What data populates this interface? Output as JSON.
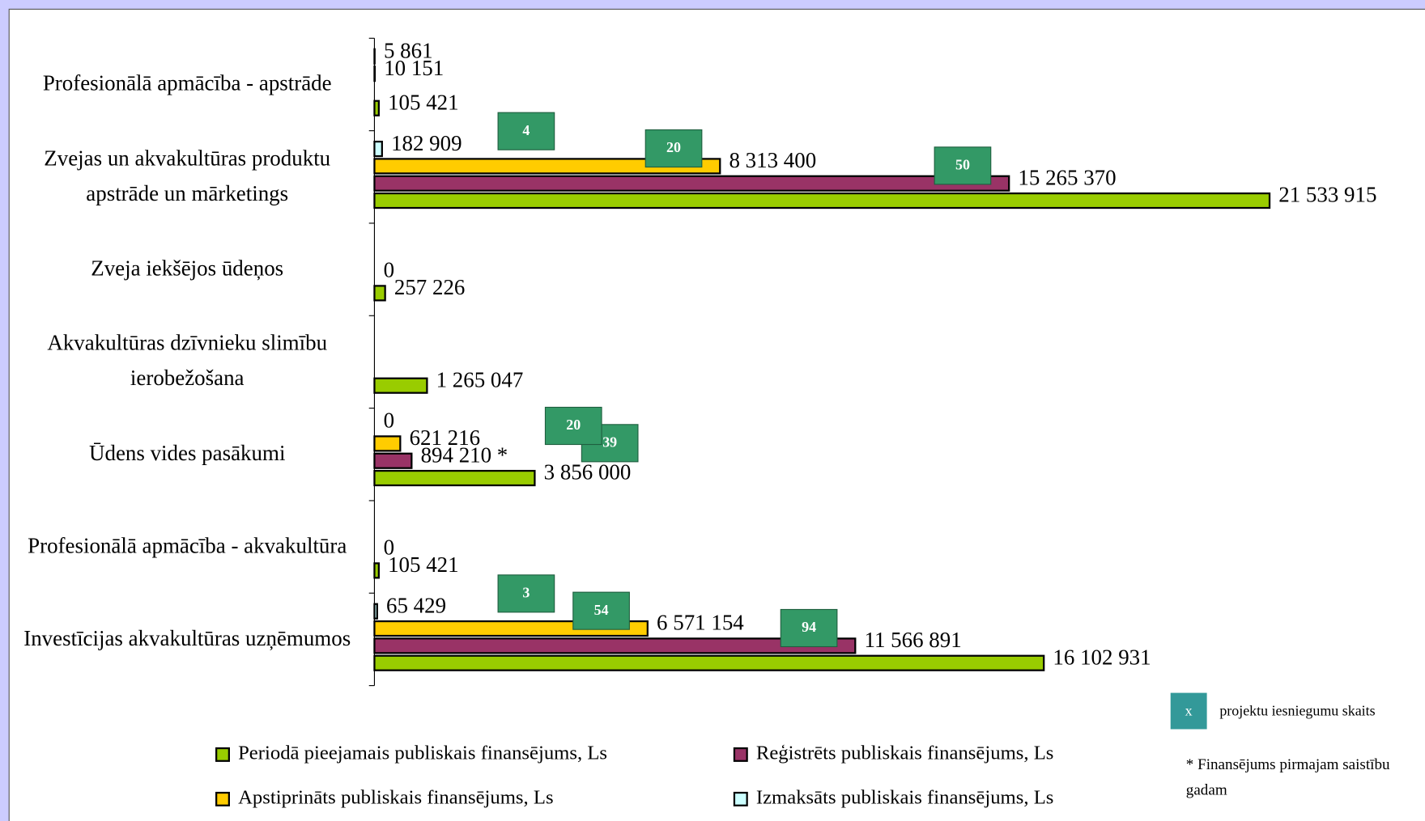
{
  "chart_data": {
    "type": "bar",
    "orientation": "horizontal",
    "categories": [
      "Profesionālā apmācība - apstrāde",
      "Zvejas un akvakultūras produktu apstrāde un mārketings",
      "Zveja iekšējos ūdeņos",
      "Akvakultūras dzīvnieku slimību ierobežošana",
      "Ūdens vides pasākumi",
      "Profesionālā apmācība - akvakultūra",
      "Investīcijas akvakultūras uzņēmumos"
    ],
    "series": [
      {
        "name": "Periodā pieejamais publiskais finansējums, Ls",
        "color": "#99cc00",
        "values": [
          105421,
          21533915,
          257226,
          1265047,
          3856000,
          105421,
          16102931
        ],
        "value_labels": [
          "105 421",
          "21 533 915",
          "257 226",
          "1 265 047",
          "3 856 000",
          "105 421",
          "16 102 931"
        ],
        "project_counts": [
          null,
          null,
          null,
          null,
          null,
          null,
          null
        ]
      },
      {
        "name": "Reģistrēts publiskais finansējums, Ls",
        "color": "#993366",
        "values": [
          null,
          15265370,
          0,
          null,
          894210,
          0,
          11566891
        ],
        "value_labels": [
          null,
          "15 265 370",
          "0",
          null,
          "894 210 *",
          "0",
          "11 566 891"
        ],
        "project_counts": [
          null,
          50,
          null,
          null,
          39,
          null,
          94
        ]
      },
      {
        "name": "Apstiprināts publiskais finansējums, Ls",
        "color": "#ffcc00",
        "values": [
          10151,
          8313400,
          null,
          null,
          621216,
          null,
          6571154
        ],
        "value_labels": [
          "10 151",
          "8 313 400",
          null,
          null,
          "621 216",
          null,
          "6 571 154"
        ],
        "project_counts": [
          null,
          20,
          null,
          null,
          20,
          null,
          54
        ]
      },
      {
        "name": "Izmaksāts publiskais finansējums, Ls",
        "color": "#ccffff",
        "values": [
          5861,
          182909,
          null,
          null,
          0,
          null,
          65429
        ],
        "value_labels": [
          "5 861",
          "182 909",
          null,
          null,
          "0",
          null,
          "65 429"
        ],
        "project_counts": [
          null,
          4,
          null,
          null,
          null,
          null,
          3
        ]
      }
    ],
    "xlim": [
      0,
      21600000
    ],
    "count_box_color": "#339966",
    "count_legend_symbol": "x",
    "count_legend": "projektu iesniegumu skaits",
    "footnote": "* Finansējums pirmajam saistību gadam"
  }
}
